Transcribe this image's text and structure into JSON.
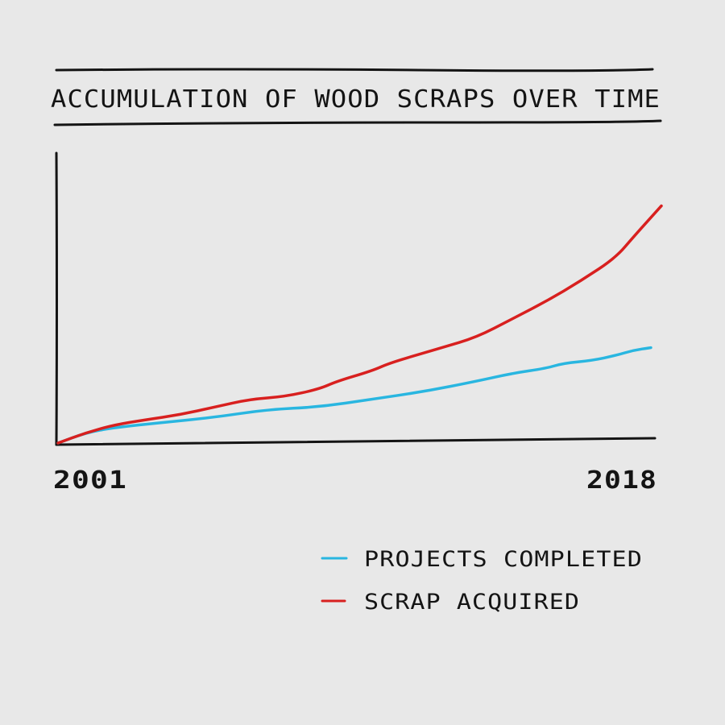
{
  "colors": {
    "background": "#e8e8e8",
    "ink": "#141414",
    "projects": "#29b6e0",
    "scrap": "#d8201f"
  },
  "chart_data": {
    "type": "line",
    "title": "ACCUMULATION OF WOOD SCRAPS OVER TIME",
    "x_tick_labels": [
      "2001",
      "2018"
    ],
    "xlim": [
      2001,
      2018
    ],
    "ylim": [
      0,
      1
    ],
    "grid": false,
    "legend_position": "bottom-right",
    "series": [
      {
        "name": "PROJECTS COMPLETED",
        "color": "#29b6e0",
        "x": [
          2001.0,
          2001.8,
          2002.6,
          2004.0,
          2005.5,
          2007.0,
          2008.5,
          2010.0,
          2011.5,
          2013.0,
          2014.0,
          2015.0,
          2015.5,
          2016.3,
          2017.0,
          2017.5,
          2018.0
        ],
        "values": [
          0.0,
          0.04,
          0.06,
          0.08,
          0.1,
          0.13,
          0.14,
          0.17,
          0.2,
          0.24,
          0.27,
          0.29,
          0.31,
          0.32,
          0.34,
          0.36,
          0.37
        ]
      },
      {
        "name": "SCRAP ACQUIRED",
        "color": "#d8201f",
        "x": [
          2001.0,
          2001.8,
          2002.6,
          2003.5,
          2004.5,
          2005.5,
          2006.5,
          2007.5,
          2008.5,
          2009.0,
          2010.0,
          2010.5,
          2011.5,
          2012.0,
          2013.0,
          2014.0,
          2015.0,
          2016.0,
          2017.0,
          2017.5,
          2018.3
        ],
        "values": [
          0.0,
          0.04,
          0.07,
          0.09,
          0.11,
          0.14,
          0.17,
          0.18,
          0.21,
          0.24,
          0.28,
          0.31,
          0.35,
          0.37,
          0.41,
          0.48,
          0.55,
          0.63,
          0.72,
          0.8,
          0.92
        ]
      }
    ]
  }
}
